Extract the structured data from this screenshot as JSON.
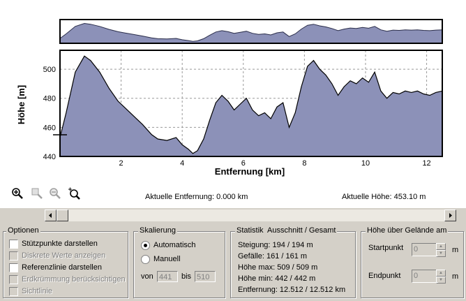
{
  "chart": {
    "ylabel": "Höhe [m]",
    "xlabel": "Entfernung [km]",
    "y_ticks": [
      "500",
      "480",
      "460",
      "440"
    ],
    "x_ticks": [
      "2",
      "4",
      "6",
      "8",
      "10",
      "12"
    ],
    "colors": {
      "fill": "#8c91b8",
      "line": "#000000",
      "grid": "#999999"
    }
  },
  "chart_data": {
    "type": "area",
    "ylabel": "Höhe [m]",
    "xlabel": "Entfernung [km]",
    "xlim": [
      0,
      12.512
    ],
    "ylim": [
      440,
      513
    ],
    "y_ticks": [
      440,
      460,
      480,
      500
    ],
    "x_ticks": [
      2,
      4,
      6,
      8,
      10,
      12
    ],
    "grid": true,
    "x": [
      0,
      0.2,
      0.5,
      0.8,
      1.0,
      1.3,
      1.6,
      1.9,
      2.1,
      2.4,
      2.7,
      3.0,
      3.2,
      3.5,
      3.8,
      4.0,
      4.2,
      4.35,
      4.5,
      4.7,
      4.9,
      5.1,
      5.3,
      5.5,
      5.7,
      5.9,
      6.1,
      6.3,
      6.5,
      6.7,
      6.9,
      7.1,
      7.3,
      7.5,
      7.7,
      7.9,
      8.1,
      8.3,
      8.5,
      8.7,
      8.9,
      9.1,
      9.3,
      9.5,
      9.7,
      9.9,
      10.1,
      10.3,
      10.5,
      10.7,
      10.9,
      11.1,
      11.3,
      11.5,
      11.7,
      11.9,
      12.1,
      12.3,
      12.512
    ],
    "values": [
      453,
      470,
      498,
      509,
      506,
      498,
      487,
      478,
      474,
      468,
      462,
      455,
      452,
      451,
      453,
      448,
      445,
      442,
      444,
      452,
      465,
      477,
      482,
      478,
      472,
      476,
      480,
      472,
      468,
      470,
      466,
      474,
      477,
      460,
      470,
      488,
      502,
      506,
      500,
      496,
      490,
      482,
      488,
      492,
      490,
      494,
      491,
      498,
      485,
      480,
      484,
      483,
      485,
      484,
      485,
      483,
      482,
      484,
      485
    ]
  },
  "tools": [
    "zoom-in-icon",
    "zoom-box-icon",
    "zoom-out-icon",
    "zoom-reset-icon"
  ],
  "info": {
    "distance": "Aktuelle Entfernung: 0.000 km",
    "height": "Aktuelle Höhe: 453.10 m"
  },
  "options": {
    "title": "Optionen",
    "items": [
      {
        "label": "Stützpunkte darstellen",
        "enabled": true,
        "checked": false
      },
      {
        "label": "Diskrete Werte anzeigen",
        "enabled": false,
        "checked": false
      },
      {
        "label": "Referenzlinie darstellen",
        "enabled": true,
        "checked": false
      },
      {
        "label": "Erdkrümmung berücksichtigen",
        "enabled": false,
        "checked": false
      },
      {
        "label": "Sichtlinie",
        "enabled": false,
        "checked": false
      }
    ]
  },
  "scaling": {
    "title": "Skalierung",
    "auto_label": "Automatisch",
    "manual_label": "Manuell",
    "from_label": "von",
    "from_value": "441",
    "to_label": "bis",
    "to_value": "510"
  },
  "stats": {
    "title": "Statistik  Ausschnitt / Gesamt",
    "lines": [
      "Steigung: 194 / 194 m",
      "Gefälle: 161 / 161 m",
      "Höhe max: 509 / 509 m",
      "Höhe min: 442 / 442 m",
      "Entfernung: 12.512 / 12.512 km"
    ]
  },
  "terrain": {
    "title": "Höhe über Gelände am",
    "start_label": "Startpunkt",
    "start_value": "0",
    "end_label": "Endpunkt",
    "end_value": "0",
    "unit": "m"
  }
}
